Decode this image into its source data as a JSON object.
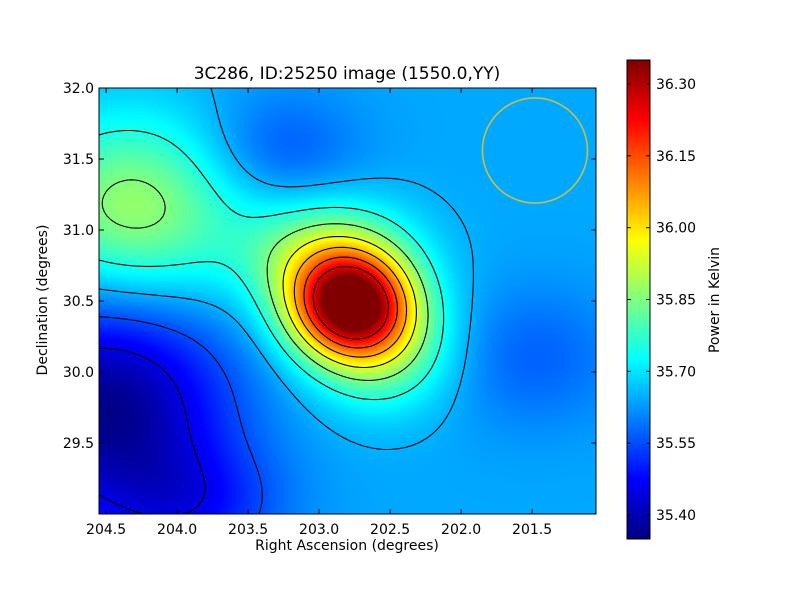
{
  "chart_data": {
    "type": "heatmap",
    "title": "3C286, ID:25250 image (1550.0,YY)",
    "xlabel": "Right Ascension (degrees)",
    "ylabel": "Declination (degrees)",
    "xlim": [
      204.55,
      201.05
    ],
    "ylim": [
      29.0,
      32.0
    ],
    "xticks": [
      204.5,
      204.0,
      203.5,
      203.0,
      202.5,
      202.0,
      201.5
    ],
    "xtick_labels": [
      "204.5",
      "204.0",
      "203.5",
      "203.0",
      "202.5",
      "202.0",
      "201.5"
    ],
    "yticks": [
      29.5,
      30.0,
      30.5,
      31.0,
      31.5,
      32.0
    ],
    "ytick_labels": [
      "29.5",
      "30.0",
      "30.5",
      "31.0",
      "31.5",
      "32.0"
    ],
    "colorbar": {
      "label": "Power in Kelvin",
      "range": [
        35.35,
        36.35
      ],
      "ticks": [
        35.4,
        35.55,
        35.7,
        35.85,
        36.0,
        36.15,
        36.3
      ],
      "tick_labels": [
        "35.40",
        "35.55",
        "35.70",
        "35.85",
        "36.00",
        "36.15",
        "36.30"
      ],
      "colormap": "jet"
    },
    "background_level": 35.64,
    "components": [
      {
        "ra": 202.78,
        "dec": 30.47,
        "sigma_ra": 0.3,
        "sigma_dec": 0.26,
        "amplitude": 0.68
      },
      {
        "ra": 202.95,
        "dec": 30.82,
        "sigma_ra": 0.4,
        "sigma_dec": 0.28,
        "amplitude": 0.22
      },
      {
        "ra": 202.55,
        "dec": 30.15,
        "sigma_ra": 0.35,
        "sigma_dec": 0.3,
        "amplitude": 0.18
      },
      {
        "ra": 204.3,
        "dec": 31.15,
        "sigma_ra": 0.55,
        "sigma_dec": 0.45,
        "amplitude": 0.24
      },
      {
        "ra": 204.5,
        "dec": 29.75,
        "sigma_ra": 0.6,
        "sigma_dec": 0.55,
        "amplitude": -0.28
      },
      {
        "ra": 203.3,
        "dec": 31.55,
        "sigma_ra": 0.4,
        "sigma_dec": 0.3,
        "amplitude": -0.09
      },
      {
        "ra": 201.5,
        "dec": 30.1,
        "sigma_ra": 0.45,
        "sigma_dec": 0.35,
        "amplitude": -0.07
      },
      {
        "ra": 203.9,
        "dec": 29.05,
        "sigma_ra": 0.45,
        "sigma_dec": 0.3,
        "amplitude": -0.12
      }
    ],
    "contour_levels": [
      35.45,
      35.55,
      35.65,
      35.75,
      35.85,
      35.95,
      36.05,
      36.15,
      36.25
    ],
    "beam": {
      "ra": 201.48,
      "dec": 31.56,
      "radius_deg": 0.37,
      "color": "#c8c040"
    },
    "grid": false
  }
}
